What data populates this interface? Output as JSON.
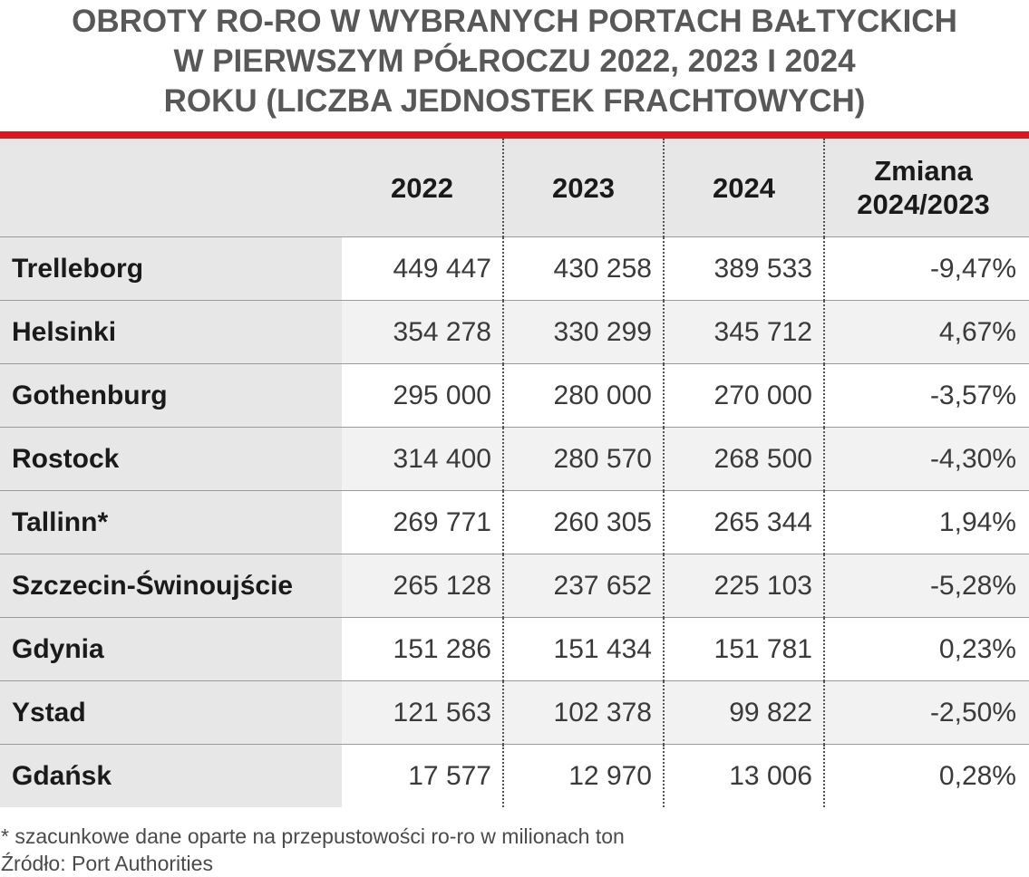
{
  "chart_data": {
    "type": "table",
    "title": [
      "OBROTY RO-RO W WYBRANYCH PORTACH BAŁTYCKICH",
      "W PIERWSZYM PÓŁROCZU 2022, 2023 I 2024",
      "ROKU (LICZBA JEDNOSTEK FRACHTOWYCH)"
    ],
    "columns": [
      "",
      "2022",
      "2023",
      "2024"
    ],
    "change_header": [
      "Zmiana",
      "2024/2023"
    ],
    "rows": [
      {
        "port": "Trelleborg",
        "values": [
          "449 447",
          "430 258",
          "389 533"
        ],
        "change": "-9,47%"
      },
      {
        "port": "Helsinki",
        "values": [
          "354 278",
          "330 299",
          "345 712"
        ],
        "change": "4,67%"
      },
      {
        "port": "Gothenburg",
        "values": [
          "295 000",
          "280 000",
          "270 000"
        ],
        "change": "-3,57%"
      },
      {
        "port": "Rostock",
        "values": [
          "314 400",
          "280 570",
          "268 500"
        ],
        "change": "-4,30%"
      },
      {
        "port": "Tallinn*",
        "values": [
          "269 771",
          "260 305",
          "265 344"
        ],
        "change": "1,94%"
      },
      {
        "port": "Szczecin-Świnoujście",
        "values": [
          "265 128",
          "237 652",
          "225 103"
        ],
        "change": "-5,28%"
      },
      {
        "port": "Gdynia",
        "values": [
          "151 286",
          "151 434",
          "151 781"
        ],
        "change": "0,23%"
      },
      {
        "port": "Ystad",
        "values": [
          "121 563",
          "102 378",
          "99 822"
        ],
        "change": "-2,50%"
      },
      {
        "port": "Gdańsk",
        "values": [
          "17 577",
          "12 970",
          "13 006"
        ],
        "change": "0,28%"
      }
    ],
    "footnotes": [
      "* szacunkowe dane oparte na przepustowości ro-ro w milionach ton",
      "Źródło: Port Authorities"
    ]
  },
  "colors": {
    "accent_rule": "#d7191f",
    "title_text": "#585858",
    "header_bg": "#e7e7e7",
    "row_alt_bg": "#f2f2f2"
  }
}
